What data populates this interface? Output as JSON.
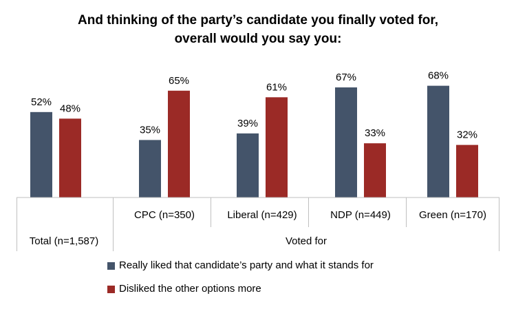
{
  "chart_data": {
    "type": "bar",
    "title_lines": [
      "And thinking of the party’s candidate you finally voted for,",
      "overall would you say you:"
    ],
    "categories": [
      "Total (n=1,587)",
      "CPC (n=350)",
      "Liberal (n=429)",
      "NDP (n=449)",
      "Green (n=170)"
    ],
    "group_label": "Voted for",
    "series": [
      {
        "name": "Really liked that candidate’s party and what it stands for",
        "color": "#44546a",
        "values": [
          52,
          35,
          39,
          67,
          68
        ],
        "labels": [
          "52%",
          "35%",
          "39%",
          "67%",
          "68%"
        ]
      },
      {
        "name": "Disliked the other options more",
        "color": "#9b2a26",
        "values": [
          48,
          65,
          61,
          33,
          32
        ],
        "labels": [
          "48%",
          "65%",
          "61%",
          "33%",
          "32%"
        ]
      }
    ],
    "ylim": [
      0,
      100
    ],
    "value_format": "percent",
    "grid": false,
    "legend_position": "bottom"
  }
}
